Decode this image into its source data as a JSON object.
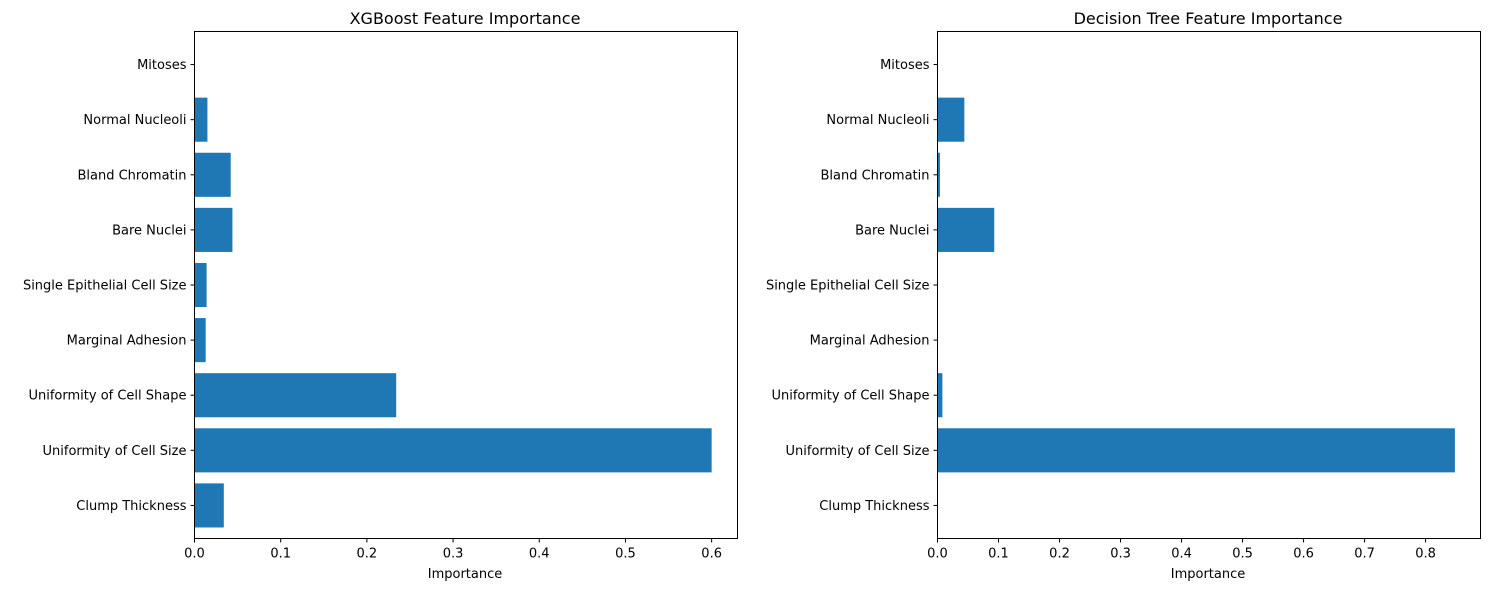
{
  "chart_data": [
    {
      "type": "bar",
      "orientation": "horizontal",
      "title": "XGBoost Feature Importance",
      "xlabel": "Importance",
      "ylabel": "",
      "categories": [
        "Clump Thickness",
        "Uniformity of Cell Size",
        "Uniformity of Cell Shape",
        "Marginal Adhesion",
        "Single Epithelial Cell Size",
        "Bare Nuclei",
        "Bland Chromatin",
        "Normal Nucleoli",
        "Mitoses"
      ],
      "values": [
        0.034,
        0.6,
        0.234,
        0.013,
        0.014,
        0.044,
        0.042,
        0.015,
        0.0
      ],
      "xlim": [
        0,
        0.63
      ],
      "xticks": [
        0.0,
        0.1,
        0.2,
        0.3,
        0.4,
        0.5,
        0.6
      ],
      "xtick_labels": [
        "0.0",
        "0.1",
        "0.2",
        "0.3",
        "0.4",
        "0.5",
        "0.6"
      ],
      "color": "#1f77b4",
      "grid": false
    },
    {
      "type": "bar",
      "orientation": "horizontal",
      "title": "Decision Tree Feature Importance",
      "xlabel": "Importance",
      "ylabel": "",
      "categories": [
        "Clump Thickness",
        "Uniformity of Cell Size",
        "Uniformity of Cell Shape",
        "Marginal Adhesion",
        "Single Epithelial Cell Size",
        "Bare Nuclei",
        "Bland Chromatin",
        "Normal Nucleoli",
        "Mitoses"
      ],
      "values": [
        0.0,
        0.848,
        0.008,
        0.0,
        0.0,
        0.093,
        0.004,
        0.044,
        0.0
      ],
      "xlim": [
        0,
        0.89
      ],
      "xticks": [
        0.0,
        0.1,
        0.2,
        0.3,
        0.4,
        0.5,
        0.6,
        0.7,
        0.8
      ],
      "xtick_labels": [
        "0.0",
        "0.1",
        "0.2",
        "0.3",
        "0.4",
        "0.5",
        "0.6",
        "0.7",
        "0.8"
      ],
      "color": "#1f77b4",
      "grid": false
    }
  ]
}
